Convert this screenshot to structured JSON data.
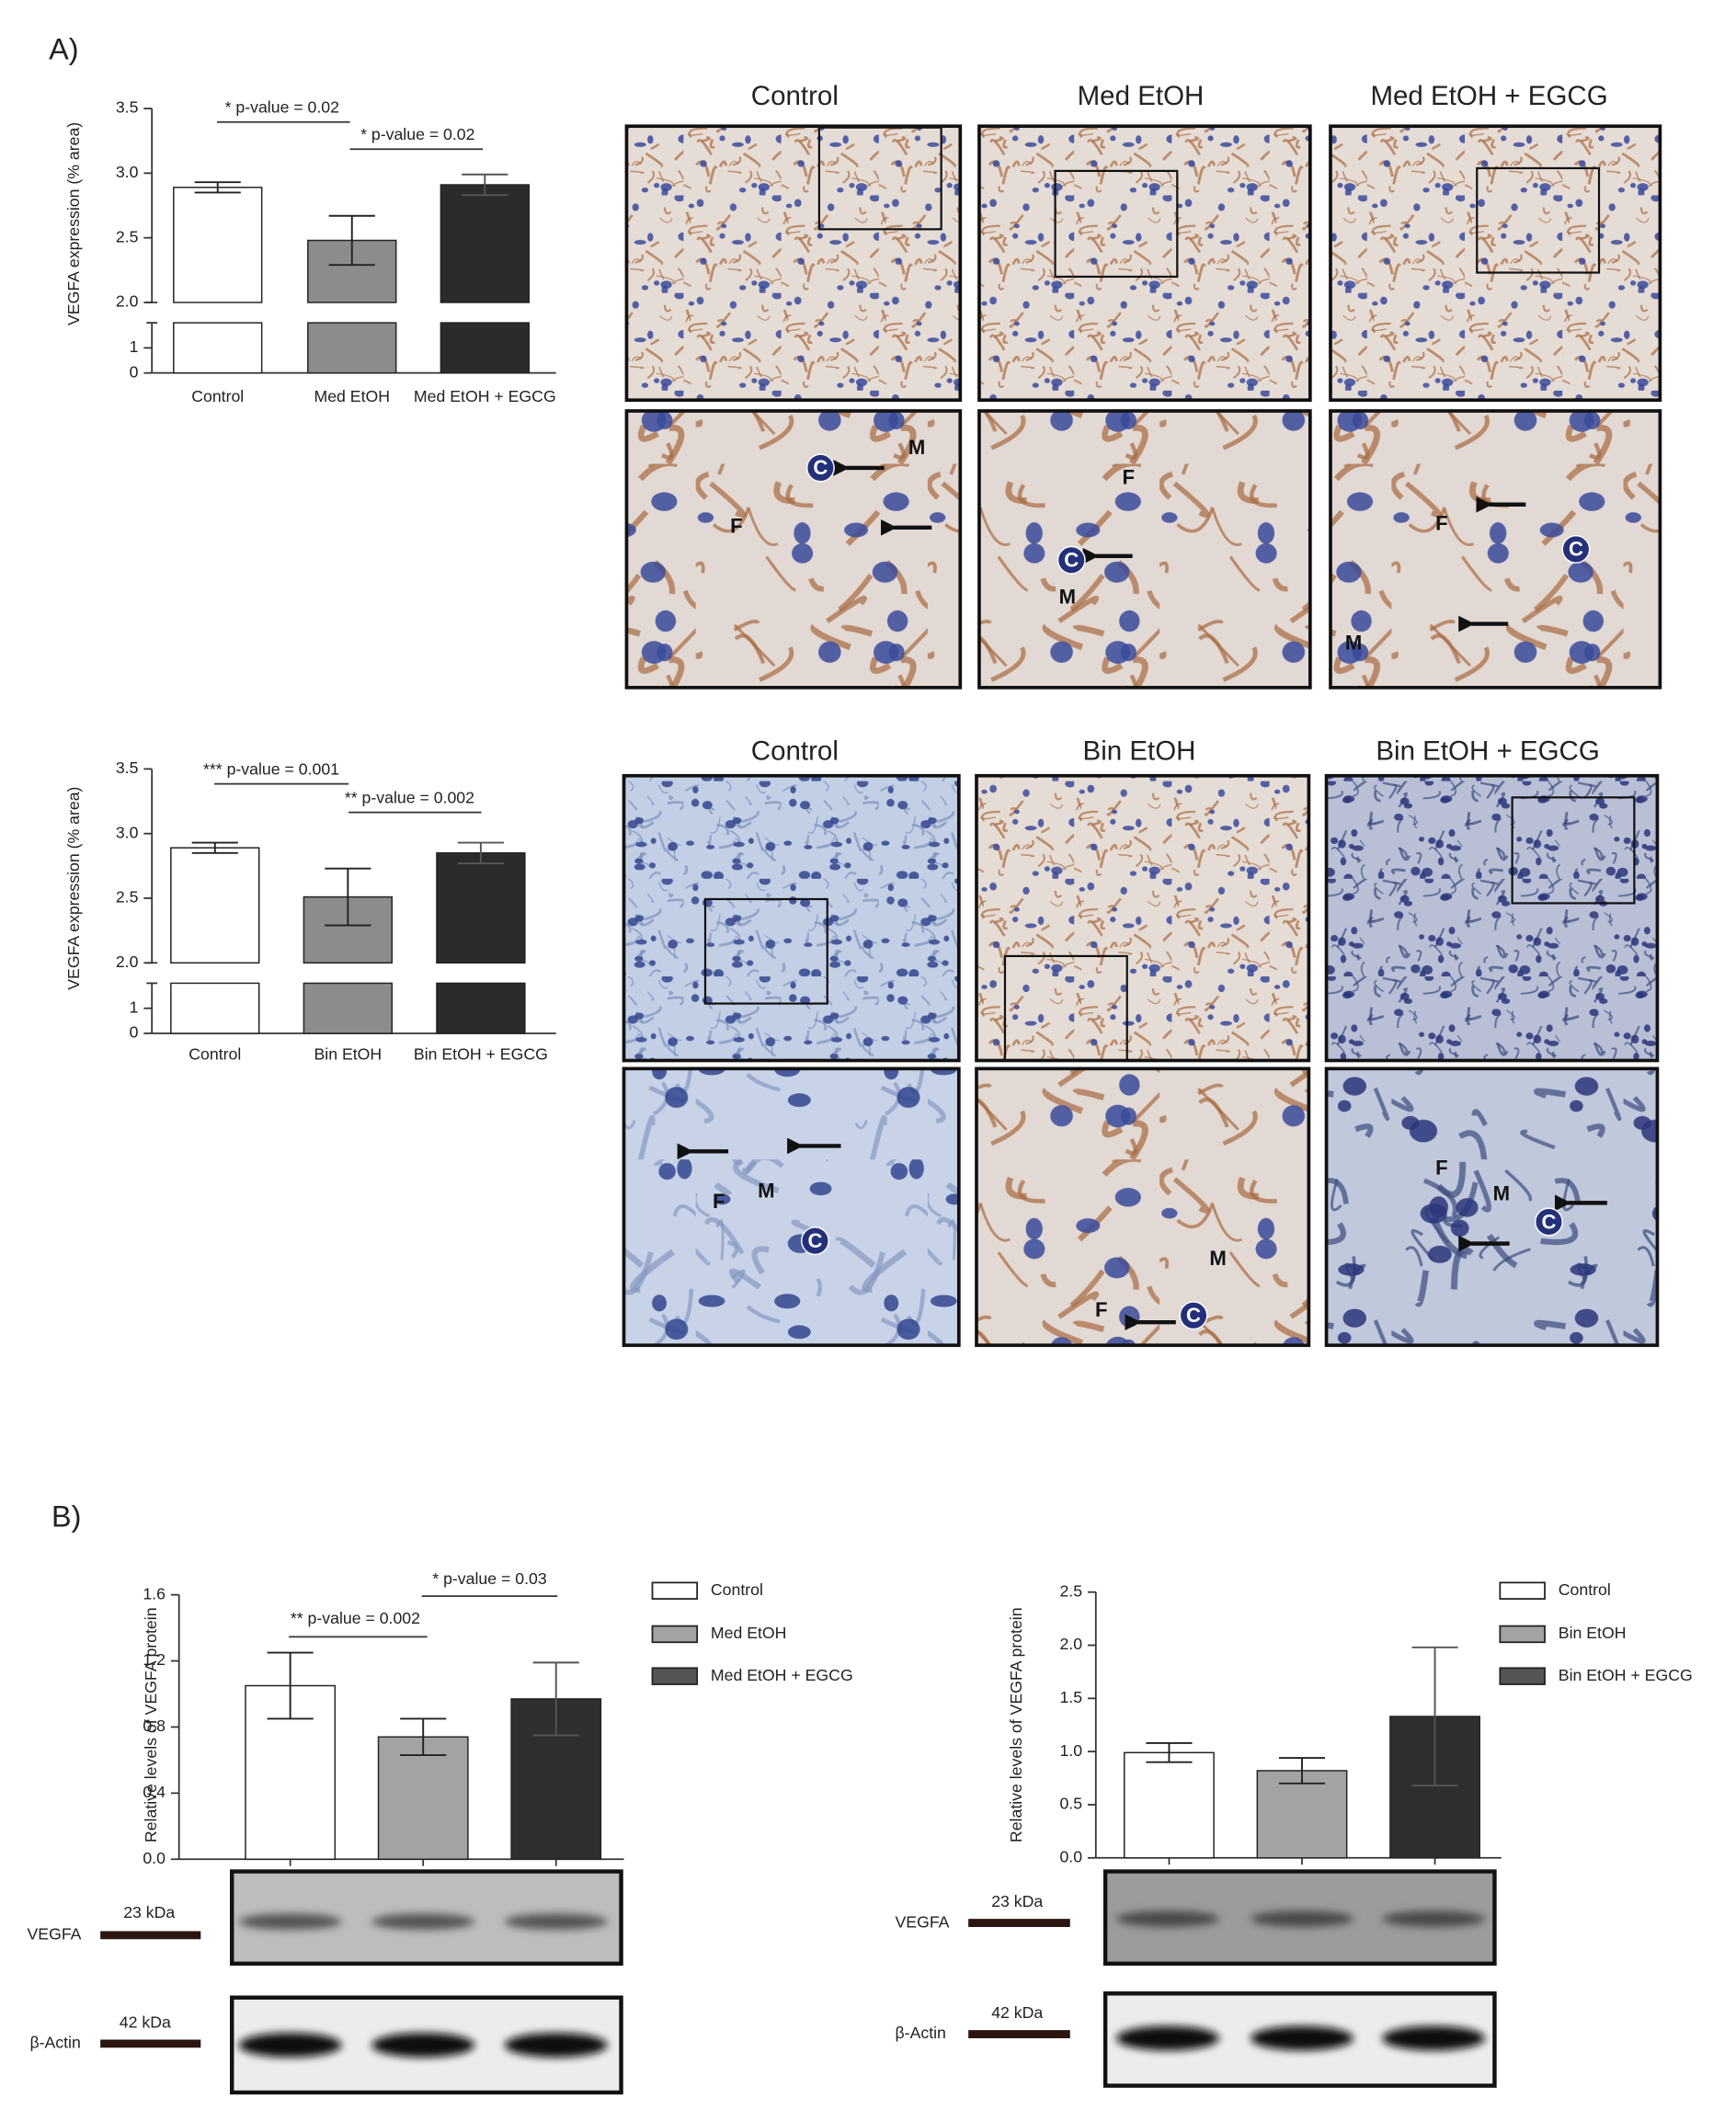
{
  "panel_labels": [
    "A)",
    "B)"
  ],
  "micrographs": [
    {
      "titles": [
        "Control",
        "Med EtOH",
        "Med EtOH + EGCG"
      ],
      "zoom_labels": [
        [
          "C",
          "M",
          "F"
        ],
        [
          "F",
          "C",
          "M"
        ],
        [
          "F",
          "C",
          "M"
        ]
      ]
    },
    {
      "titles": [
        "Control",
        "Bin EtOH",
        "Bin EtOH + EGCG"
      ],
      "zoom_labels": [
        [
          "F",
          "M",
          "C"
        ],
        [
          "M",
          "F",
          "C"
        ],
        [
          "F",
          "M",
          "C"
        ]
      ]
    }
  ],
  "blots": [
    {
      "bands": [
        {
          "name": "VEGFA",
          "size": "23 kDa"
        },
        {
          "name": "β-Actin",
          "size": "42 kDa"
        }
      ]
    },
    {
      "bands": [
        {
          "name": "VEGFA",
          "size": "23 kDa"
        },
        {
          "name": "β-Actin",
          "size": "42 kDa"
        }
      ]
    }
  ],
  "chart_data": [
    {
      "type": "bar",
      "ylabel": "VEGFA expression (% area)",
      "categories": [
        "Control",
        "Med EtOH",
        "Med EtOH + EGCG"
      ],
      "values": [
        2.89,
        2.48,
        2.91
      ],
      "errors": [
        0.04,
        0.19,
        0.08
      ],
      "colors": [
        "#ffffff",
        "#8c8c8c",
        "#2b2b2b"
      ],
      "ylim": [
        0,
        3.5
      ],
      "ybreak": 2,
      "yticks": [
        0,
        1,
        {
          "value": 2,
          "label": "2.0"
        },
        2.5,
        {
          "value": 3,
          "label": "3.0"
        },
        3.5
      ],
      "annotations": [
        "* p-value = 0.02",
        "* p-value = 0.02"
      ]
    },
    {
      "type": "bar",
      "ylabel": "VEGFA expression (% area)",
      "categories": [
        "Control",
        "Bin EtOH",
        "Bin EtOH + EGCG"
      ],
      "values": [
        2.89,
        2.51,
        2.85
      ],
      "errors": [
        0.04,
        0.22,
        0.08
      ],
      "colors": [
        "#ffffff",
        "#8c8c8c",
        "#2b2b2b"
      ],
      "ylim": [
        0,
        3.5
      ],
      "ybreak": 2,
      "yticks": [
        0,
        1,
        {
          "value": 2,
          "label": "2.0"
        },
        2.5,
        {
          "value": 3,
          "label": "3.0"
        },
        3.5
      ],
      "annotations": [
        "*** p-value = 0.001",
        "** p-value = 0.002"
      ]
    },
    {
      "type": "bar",
      "ylabel": "Relative levels of VEGFA protein",
      "categories": [
        null
      ],
      "series": [
        {
          "name": "Control",
          "color": "#ffffff",
          "values": [
            1.05
          ],
          "errors": [
            0.2
          ]
        },
        {
          "name": "Med EtOH",
          "color": "#a3a3a3",
          "values": [
            0.74
          ],
          "errors": [
            0.11
          ]
        },
        {
          "name": "Med EtOH + EGCG",
          "color": "#2f2f2f",
          "values": [
            0.97
          ],
          "errors": [
            0.22
          ]
        }
      ],
      "ylim": [
        0,
        1.6
      ],
      "yticks": [
        {
          "value": 0,
          "label": "0.0"
        },
        0.4,
        0.8,
        1.2,
        1.6
      ],
      "legend": "right",
      "annotations": [
        "** p-value = 0.002",
        "* p-value = 0.03"
      ]
    },
    {
      "type": "bar",
      "ylabel": "Relative levels of VEGFA protein",
      "categories": [
        null
      ],
      "series": [
        {
          "name": "Control",
          "color": "#ffffff",
          "values": [
            0.99
          ],
          "errors": [
            0.09
          ]
        },
        {
          "name": "Bin EtOH",
          "color": "#a3a3a3",
          "values": [
            0.82
          ],
          "errors": [
            0.12
          ]
        },
        {
          "name": "Bin EtOH + EGCG",
          "color": "#2f2f2f",
          "values": [
            1.33
          ],
          "errors": [
            0.65
          ]
        }
      ],
      "ylim": [
        0,
        2.5
      ],
      "yticks": [
        {
          "value": 0,
          "label": "0.0"
        },
        0.5,
        {
          "value": 1,
          "label": "1.0"
        },
        1.5,
        {
          "value": 2,
          "label": "2.0"
        },
        2.5
      ],
      "legend": "right"
    }
  ]
}
